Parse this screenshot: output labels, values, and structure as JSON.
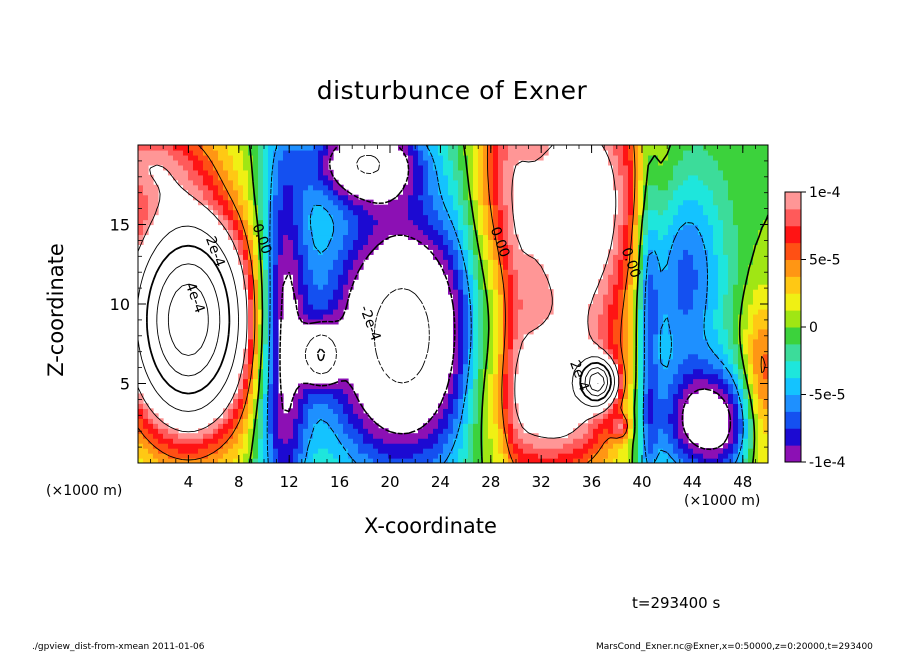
{
  "chart_data": {
    "type": "heatmap",
    "title": "disturbunce of Exner",
    "xlabel": "X-coordinate",
    "ylabel": "Z-coordinate",
    "x_unit_labels": [
      "(×1000 m)",
      "(×1000 m)"
    ],
    "xlim": [
      0,
      50
    ],
    "ylim": [
      0,
      20
    ],
    "x_ticks": [
      4,
      8,
      12,
      16,
      20,
      24,
      28,
      32,
      36,
      40,
      44,
      48
    ],
    "y_ticks": [
      5,
      10,
      15
    ],
    "colorbar": {
      "range": [
        -0.0001,
        0.0001
      ],
      "tick_values": [
        0.0001,
        5e-05,
        0,
        -5e-05,
        -0.0001
      ],
      "tick_labels": [
        "1e-4",
        "5e-5",
        "0",
        "-5e-5",
        "-1e-4"
      ],
      "colors": [
        "#8c10b4",
        "#1c0ad2",
        "#1450f0",
        "#1e90ff",
        "#14c3ff",
        "#1ee6dc",
        "#3cdc9a",
        "#3cd23c",
        "#a0e614",
        "#f0f014",
        "#ffc814",
        "#ff9614",
        "#ff5014",
        "#ff1414",
        "#ff5a5a",
        "#ff9696"
      ]
    },
    "contour_labels": [
      {
        "text": "2e-4",
        "x": 5.8,
        "z": 13.2
      },
      {
        "text": "4e-4",
        "x": 4.2,
        "z": 10.3
      },
      {
        "text": "0.00",
        "x": 9.5,
        "z": 14.0
      },
      {
        "text": "-2e-4",
        "x": 18.1,
        "z": 8.7
      },
      {
        "text": "0.00",
        "x": 28.4,
        "z": 13.8
      },
      {
        "text": "2e-4",
        "x": 34.7,
        "z": 5.4
      },
      {
        "text": "0.00",
        "x": 38.8,
        "z": 12.5
      }
    ],
    "grid": false,
    "legend_position": "right"
  },
  "annotations": {
    "timestamp": "t=293400 s",
    "footer_left": "./gpview_dist-from-xmean  2011-01-06",
    "footer_right": "MarsCond_Exner.nc@Exner,x=0:50000,z=0:20000,t=293400"
  }
}
